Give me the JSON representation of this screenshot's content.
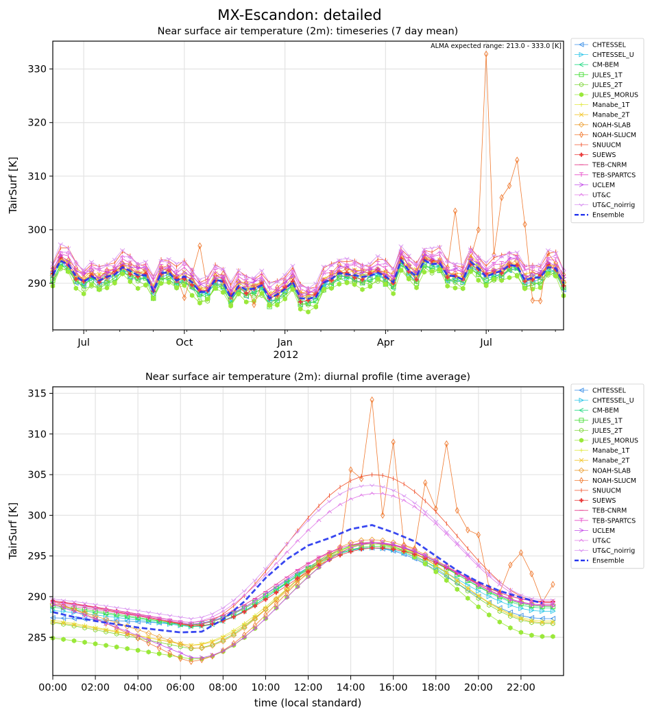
{
  "figure": {
    "suptitle": "MX-Escandon: detailed"
  },
  "colors": {
    "CHTESSEL": "#3a8fe8",
    "CHTESSEL_U": "#2ec5e8",
    "CM-BEM": "#26d985",
    "JULES_1T": "#44dd33",
    "JULES_2T": "#7ed63a",
    "JULES_MORUS": "#9ae83a",
    "Manabe_1T": "#e0e83a",
    "Manabe_2T": "#f2c52a",
    "NOAH-SLAB": "#eda23a",
    "NOAH-SLUCM": "#f07a30",
    "SNUUCM": "#f0502a",
    "SUEWS": "#ea3a3a",
    "TEB-CNRM": "#e43a8a",
    "TEB-SPARTCS": "#e64ac8",
    "UCLEM": "#c24ae8",
    "UT&C": "#e07ae8",
    "UT&C_noirrig": "#d890f0",
    "Ensemble": "#2233ee"
  },
  "legend_entries": [
    "CHTESSEL",
    "CHTESSEL_U",
    "CM-BEM",
    "JULES_1T",
    "JULES_2T",
    "JULES_MORUS",
    "Manabe_1T",
    "Manabe_2T",
    "NOAH-SLAB",
    "NOAH-SLUCM",
    "SNUUCM",
    "SUEWS",
    "TEB-CNRM",
    "TEB-SPARTCS",
    "UCLEM",
    "UT&C",
    "UT&C_noirrig",
    "Ensemble"
  ],
  "chart_data": [
    {
      "type": "line",
      "title": "Near surface air temperature (2m): timeseries (7 day mean)",
      "annotation": "ALMA expected range: 213.0 - 333.0 [K]",
      "xlabel": "",
      "ylabel": "TairSurf [K]",
      "ylim": [
        281.3,
        335.2
      ],
      "yticks": [
        290,
        300,
        310,
        320,
        330
      ],
      "xticks": [
        {
          "week": 4,
          "label": "Jul"
        },
        {
          "week": 17,
          "label": "Oct"
        },
        {
          "week": 30,
          "label": "Jan"
        },
        {
          "week": 43,
          "label": "Apr"
        },
        {
          "week": 56,
          "label": "Jul"
        }
      ],
      "xtick_year": {
        "week": 30,
        "label": "2012"
      },
      "x": [
        0,
        1,
        2,
        3,
        4,
        5,
        6,
        7,
        8,
        9,
        10,
        11,
        12,
        13,
        14,
        15,
        16,
        17,
        18,
        19,
        20,
        21,
        22,
        23,
        24,
        25,
        26,
        27,
        28,
        29,
        30,
        31,
        32,
        33,
        34,
        35,
        36,
        37,
        38,
        39,
        40,
        41,
        42,
        43,
        44,
        45,
        46,
        47,
        48,
        49,
        50,
        51,
        52,
        53,
        54,
        55,
        56,
        57,
        58,
        59,
        60,
        61,
        62,
        63,
        64,
        65,
        66
      ],
      "xlim": [
        0,
        66
      ],
      "ensemble": [
        291.5,
        294.2,
        293.5,
        291.3,
        290.3,
        291.3,
        290.5,
        291.2,
        291.6,
        293.0,
        292.3,
        291.5,
        291.5,
        288.6,
        291.9,
        292.0,
        290.5,
        291.3,
        290.2,
        288.4,
        288.4,
        290.7,
        290.3,
        287.3,
        289.5,
        288.8,
        289.0,
        289.6,
        287.2,
        287.9,
        288.9,
        290.3,
        287.2,
        287.1,
        287.4,
        290.1,
        290.8,
        291.9,
        291.7,
        291.5,
        291.2,
        291.4,
        292.0,
        291.3,
        290.2,
        294.3,
        292.4,
        291.3,
        294.3,
        293.6,
        293.7,
        291.5,
        291.3,
        290.7,
        294.0,
        292.8,
        291.2,
        291.9,
        292.3,
        293.4,
        293.2,
        290.6,
        291.0,
        291.1,
        293.0,
        292.8,
        290.0
      ],
      "model_offsets": {
        "CHTESSEL": -0.6,
        "CHTESSEL_U": -0.2,
        "CM-BEM": -0.7,
        "JULES_1T": -0.9,
        "JULES_2T": -1.2,
        "JULES_MORUS": -1.8,
        "Manabe_1T": 0.2,
        "Manabe_2T": 0.6,
        "NOAH-SLAB": 0.4,
        "NOAH-SLUCM": 1.0,
        "SNUUCM": 2.4,
        "SUEWS": 0.0,
        "TEB-CNRM": 0.3,
        "TEB-SPARTCS": 1.4,
        "UCLEM": 0.9,
        "UT&C": 2.0,
        "UT&C_noirrig": 2.6
      },
      "noah_slucm_spikes": [
        {
          "week": 17,
          "value": 287.3
        },
        {
          "week": 19,
          "value": 297.0
        },
        {
          "week": 26,
          "value": 286.0
        },
        {
          "week": 52,
          "value": 303.5
        },
        {
          "week": 55,
          "value": 300.0
        },
        {
          "week": 56,
          "value": 332.8
        },
        {
          "week": 57,
          "value": 295.3
        },
        {
          "week": 58,
          "value": 306.0
        },
        {
          "week": 59,
          "value": 308.2
        },
        {
          "week": 60,
          "value": 313.0
        },
        {
          "week": 61,
          "value": 301.0
        },
        {
          "week": 62,
          "value": 286.8
        },
        {
          "week": 63,
          "value": 286.7
        },
        {
          "week": 64,
          "value": 295.6
        }
      ]
    },
    {
      "type": "line",
      "title": "Near surface air temperature (2m): diurnal profile (time average)",
      "xlabel": "time (local standard)",
      "ylabel": "TairSurf [K]",
      "ylim": [
        280.3,
        315.8
      ],
      "yticks": [
        285,
        290,
        295,
        300,
        305,
        310,
        315
      ],
      "xlim": [
        0,
        24
      ],
      "xtick_labels": [
        "00:00",
        "02:00",
        "04:00",
        "06:00",
        "08:00",
        "10:00",
        "12:00",
        "14:00",
        "16:00",
        "18:00",
        "20:00",
        "22:00"
      ],
      "profiles": {
        "CHTESSEL": {
          "min": 286.6,
          "max": 296.0,
          "end": 287.3
        },
        "CHTESSEL_U": {
          "min": 286.3,
          "max": 296.0,
          "end": 288.2
        },
        "CM-BEM": {
          "min": 286.3,
          "max": 296.6,
          "end": 288.6
        },
        "JULES_1T": {
          "min": 286.5,
          "max": 296.2,
          "end": 288.8
        },
        "JULES_2T": {
          "min": 283.6,
          "max": 296.6,
          "end": 286.7
        },
        "JULES_MORUS": {
          "min": 282.3,
          "max": 296.5,
          "end": 285.1
        },
        "Manabe_1T": {
          "min": 284.0,
          "max": 296.6,
          "end": 287.0
        },
        "Manabe_2T": {
          "min": 284.0,
          "max": 296.6,
          "end": 286.8
        },
        "NOAH-SLAB": {
          "min": 283.6,
          "max": 297.0,
          "end": 289.0
        },
        "NOAH-SLUCM": {
          "min": 282.0,
          "max": 297.0,
          "end": 289.3
        },
        "SNUUCM": {
          "min": 286.4,
          "max": 305.0,
          "end": 289.3
        },
        "SUEWS": {
          "min": 286.4,
          "max": 296.0,
          "end": 289.4
        },
        "TEB-CNRM": {
          "min": 286.8,
          "max": 296.6,
          "end": 289.4
        },
        "TEB-SPARTCS": {
          "min": 286.6,
          "max": 296.7,
          "end": 289.0
        },
        "UCLEM": {
          "min": 282.4,
          "max": 296.6,
          "end": 288.9
        },
        "UT&C": {
          "min": 286.8,
          "max": 302.7,
          "end": 289.2
        },
        "UT&C_noirrig": {
          "min": 287.3,
          "max": 303.7,
          "end": 289.6
        }
      },
      "noah_slucm_spikes": [
        {
          "hour": 14.0,
          "value": 305.6
        },
        {
          "hour": 14.5,
          "value": 304.5
        },
        {
          "hour": 15.0,
          "value": 314.2
        },
        {
          "hour": 15.5,
          "value": 300.0
        },
        {
          "hour": 16.0,
          "value": 309.0
        },
        {
          "hour": 17.5,
          "value": 304.0
        },
        {
          "hour": 18.0,
          "value": 300.8
        },
        {
          "hour": 18.5,
          "value": 308.8
        },
        {
          "hour": 19.0,
          "value": 300.6
        },
        {
          "hour": 19.5,
          "value": 298.2
        },
        {
          "hour": 20.0,
          "value": 297.6
        },
        {
          "hour": 21.5,
          "value": 293.9
        },
        {
          "hour": 22.0,
          "value": 295.4
        },
        {
          "hour": 22.5,
          "value": 292.8
        },
        {
          "hour": 23.5,
          "value": 291.5
        }
      ],
      "ensemble_hourly": [
        288.1,
        287.5,
        287.0,
        286.6,
        286.2,
        285.9,
        285.6,
        285.7,
        287.2,
        289.4,
        292.3,
        294.6,
        296.3,
        297.2,
        298.3,
        298.8,
        297.9,
        296.8,
        295.0,
        293.2,
        291.8,
        290.7,
        289.9,
        289.2
      ]
    }
  ]
}
